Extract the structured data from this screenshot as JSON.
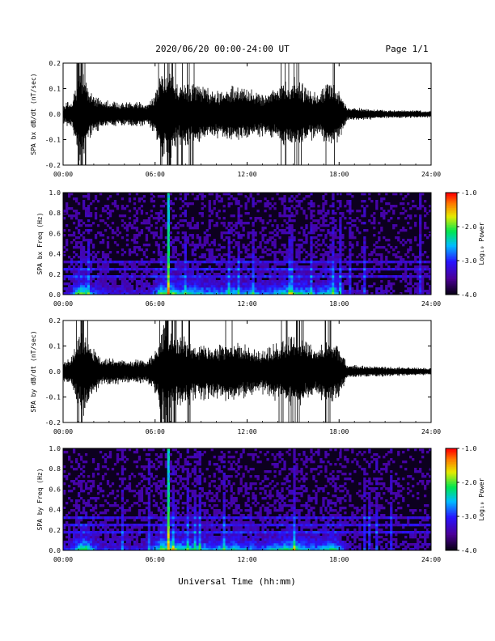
{
  "header": {
    "title": "2020/06/20  00:00-24:00 UT",
    "page": "Page 1/1"
  },
  "chart_data": [
    {
      "type": "line",
      "id": "bx-waveform",
      "ylabel": "SPA bx dB/dt (nT/sec)",
      "xlim": [
        0,
        24
      ],
      "ylim": [
        -0.2,
        0.2
      ],
      "xticks": [
        "00:00",
        "06:00",
        "12:00",
        "18:00",
        "24:00"
      ],
      "yticks": [
        "-0.2",
        "-0.1",
        "0.0",
        "0.1",
        "0.2"
      ],
      "amplitude_envelope": {
        "x_hours": [
          0,
          0.6,
          1.0,
          1.3,
          1.7,
          2.5,
          4.0,
          5.5,
          6.0,
          6.5,
          7.0,
          7.5,
          8.5,
          10.0,
          11.0,
          12.0,
          13.0,
          14.0,
          15.0,
          15.5,
          16.5,
          17.5,
          18.0,
          18.5,
          19.5,
          21.0,
          24.0
        ],
        "amplitude": [
          0.04,
          0.06,
          0.2,
          0.2,
          0.11,
          0.06,
          0.05,
          0.05,
          0.09,
          0.2,
          0.2,
          0.13,
          0.13,
          0.1,
          0.12,
          0.11,
          0.09,
          0.12,
          0.15,
          0.14,
          0.09,
          0.15,
          0.11,
          0.03,
          0.025,
          0.018,
          0.015
        ]
      }
    },
    {
      "type": "heatmap",
      "id": "bx-spectrogram",
      "ylabel": "SPA bx Freq (Hz)",
      "xlim": [
        0,
        24
      ],
      "ylim": [
        0,
        1.0
      ],
      "xticks": [
        "00:00",
        "06:00",
        "12:00",
        "18:00",
        "24:00"
      ],
      "yticks": [
        "0.0",
        "0.2",
        "0.4",
        "0.6",
        "0.8",
        "1.0"
      ],
      "colorbar": {
        "label": "Log₁₀ Power",
        "range": [
          -4.0,
          -1.0
        ],
        "ticks": [
          "-1.0",
          "-2.0",
          "-3.0",
          "-4.0"
        ]
      }
    },
    {
      "type": "line",
      "id": "by-waveform",
      "ylabel": "SPA by dB/dt (nT/sec)",
      "xlim": [
        0,
        24
      ],
      "ylim": [
        -0.2,
        0.2
      ],
      "xticks": [
        "00:00",
        "06:00",
        "12:00",
        "18:00",
        "24:00"
      ],
      "yticks": [
        "-0.2",
        "-0.1",
        "0.0",
        "0.1",
        "0.2"
      ],
      "amplitude_envelope": {
        "x_hours": [
          0,
          0.6,
          1.0,
          1.3,
          1.7,
          2.5,
          4.0,
          5.5,
          6.0,
          6.5,
          7.0,
          7.5,
          8.5,
          10.0,
          11.0,
          12.0,
          13.0,
          14.0,
          15.0,
          15.5,
          16.5,
          17.5,
          18.0,
          18.5,
          19.5,
          21.0,
          24.0
        ],
        "amplitude": [
          0.04,
          0.07,
          0.16,
          0.2,
          0.13,
          0.06,
          0.05,
          0.05,
          0.1,
          0.2,
          0.2,
          0.15,
          0.13,
          0.11,
          0.13,
          0.11,
          0.09,
          0.13,
          0.16,
          0.14,
          0.1,
          0.15,
          0.11,
          0.03,
          0.025,
          0.02,
          0.015
        ]
      }
    },
    {
      "type": "heatmap",
      "id": "by-spectrogram",
      "ylabel": "SPA by Freq (Hz)",
      "xlim": [
        0,
        24
      ],
      "ylim": [
        0,
        1.0
      ],
      "xticks": [
        "00:00",
        "06:00",
        "12:00",
        "18:00",
        "24:00"
      ],
      "yticks": [
        "0.0",
        "0.2",
        "0.4",
        "0.6",
        "0.8",
        "1.0"
      ],
      "colorbar": {
        "label": "Log₁₀ Power",
        "range": [
          -4.0,
          -1.0
        ],
        "ticks": [
          "-1.0",
          "-2.0",
          "-3.0",
          "-4.0"
        ]
      }
    }
  ],
  "xlabel": "Universal Time (hh:mm)"
}
